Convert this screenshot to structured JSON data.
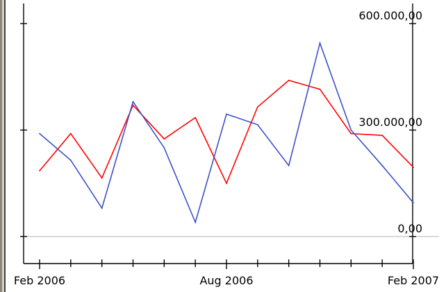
{
  "chart_data": {
    "type": "line",
    "title": "",
    "xlabel": "",
    "ylabel": "",
    "x_tick_labels": [
      "Feb 2006",
      "Aug 2006",
      "Feb 2007"
    ],
    "y_tick_labels": [
      "0,00",
      "300.000,00",
      "600.000,00"
    ],
    "y_ticks": [
      0,
      300000,
      600000
    ],
    "ylim": [
      -75000,
      660000
    ],
    "x_months": [
      "2006-02",
      "2006-03",
      "2006-04",
      "2006-05",
      "2006-06",
      "2006-07",
      "2006-08",
      "2006-09",
      "2006-10",
      "2006-11",
      "2006-12",
      "2007-01",
      "2007-02"
    ],
    "grid": false,
    "legend": "none",
    "series": [
      {
        "color": "#ff0000",
        "values": [
          185000,
          290000,
          165000,
          370000,
          275000,
          335000,
          150000,
          365000,
          440000,
          415000,
          290000,
          285000,
          195000
        ]
      },
      {
        "color": "#3b50c8",
        "values": [
          290000,
          215000,
          80000,
          380000,
          250000,
          40000,
          345000,
          315000,
          200000,
          545000,
          300000,
          200000,
          95000
        ]
      }
    ]
  }
}
